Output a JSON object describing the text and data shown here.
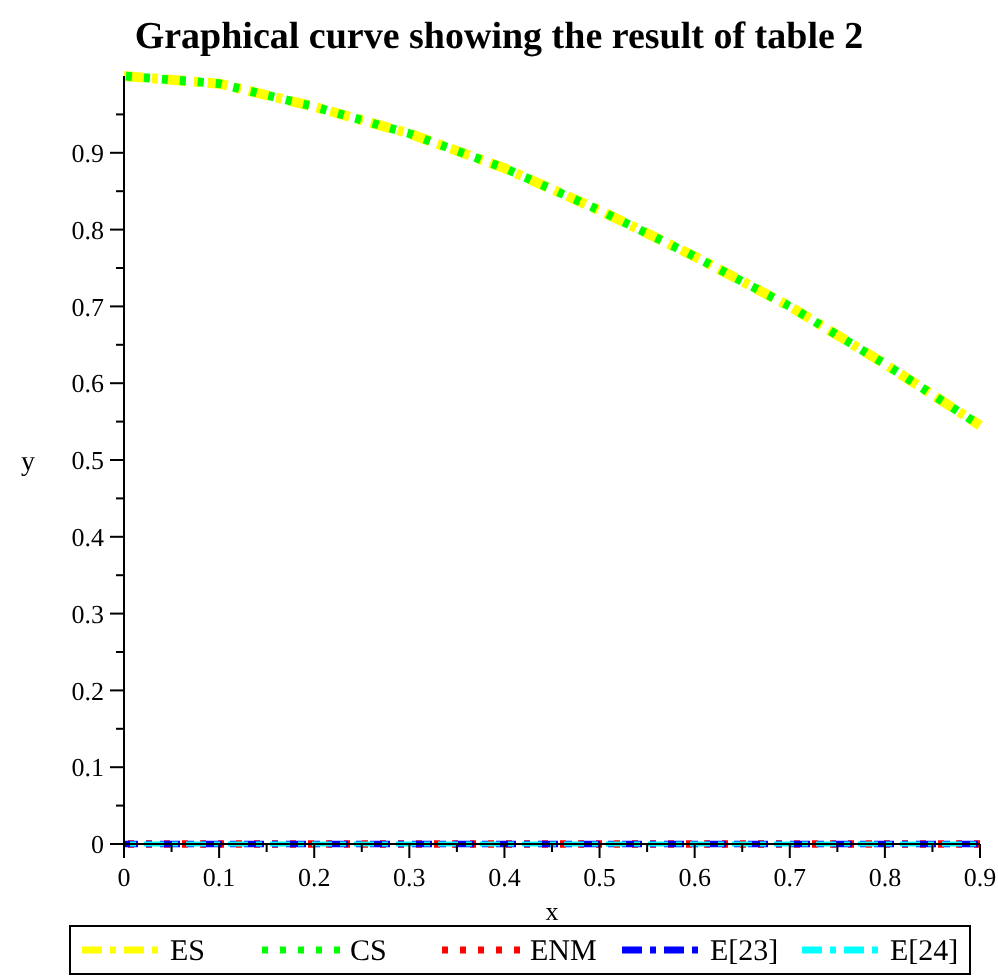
{
  "chart_data": {
    "type": "line",
    "title": "Graphical curve showing the result of table 2",
    "xlabel": "x",
    "ylabel": "y",
    "x": [
      0,
      0.1,
      0.2,
      0.3,
      0.4,
      0.5,
      0.6,
      0.7,
      0.8,
      0.9
    ],
    "series": [
      {
        "name": "ES",
        "color": "#ffff00",
        "line_style": "dashed",
        "values": [
          1.0,
          0.99,
          0.96,
          0.925,
          0.88,
          0.825,
          0.765,
          0.7,
          0.625,
          0.545
        ]
      },
      {
        "name": "CS",
        "color": "#00ff00",
        "line_style": "dotted",
        "values": [
          1.0,
          0.99,
          0.96,
          0.925,
          0.88,
          0.825,
          0.765,
          0.7,
          0.625,
          0.545
        ]
      },
      {
        "name": "ENM",
        "color": "#ff0000",
        "line_style": "dotted",
        "values": [
          0,
          0,
          0,
          0,
          0,
          0,
          0,
          0,
          0,
          0
        ]
      },
      {
        "name": "E[23]",
        "color": "#0000ff",
        "line_style": "dashed",
        "values": [
          0,
          0,
          0,
          0,
          0,
          0,
          0,
          0,
          0,
          0
        ]
      },
      {
        "name": "E[24]",
        "color": "#00ffff",
        "line_style": "dashed",
        "values": [
          0,
          0,
          0,
          0,
          0,
          0,
          0,
          0,
          0,
          0
        ]
      }
    ],
    "xlim": [
      0,
      0.9
    ],
    "ylim": [
      0,
      1
    ],
    "xticks": [
      0,
      {
        "value": 0.05,
        "label": null
      },
      0.1,
      {
        "value": 0.15,
        "label": null
      },
      0.2,
      {
        "value": 0.25,
        "label": null
      },
      0.3,
      {
        "value": 0.35,
        "label": null
      },
      0.4,
      {
        "value": 0.45,
        "label": null
      },
      0.5,
      {
        "value": 0.55,
        "label": null
      },
      0.6,
      {
        "value": 0.65,
        "label": null
      },
      0.7,
      {
        "value": 0.75,
        "label": null
      },
      0.8,
      {
        "value": 0.85,
        "label": null
      },
      0.9
    ],
    "yticks": [
      0,
      {
        "value": 0.05,
        "label": null
      },
      0.1,
      {
        "value": 0.15,
        "label": null
      },
      0.2,
      {
        "value": 0.25,
        "label": null
      },
      0.3,
      {
        "value": 0.35,
        "label": null
      },
      0.4,
      {
        "value": 0.45,
        "label": null
      },
      0.5,
      {
        "value": 0.55,
        "label": null
      },
      0.6,
      {
        "value": 0.65,
        "label": null
      },
      0.7,
      {
        "value": 0.75,
        "label": null
      },
      0.8,
      {
        "value": 0.85,
        "label": null
      },
      0.9,
      {
        "value": 0.95,
        "label": null
      }
    ],
    "grid": false,
    "legend": "bottom",
    "marker": "none"
  }
}
